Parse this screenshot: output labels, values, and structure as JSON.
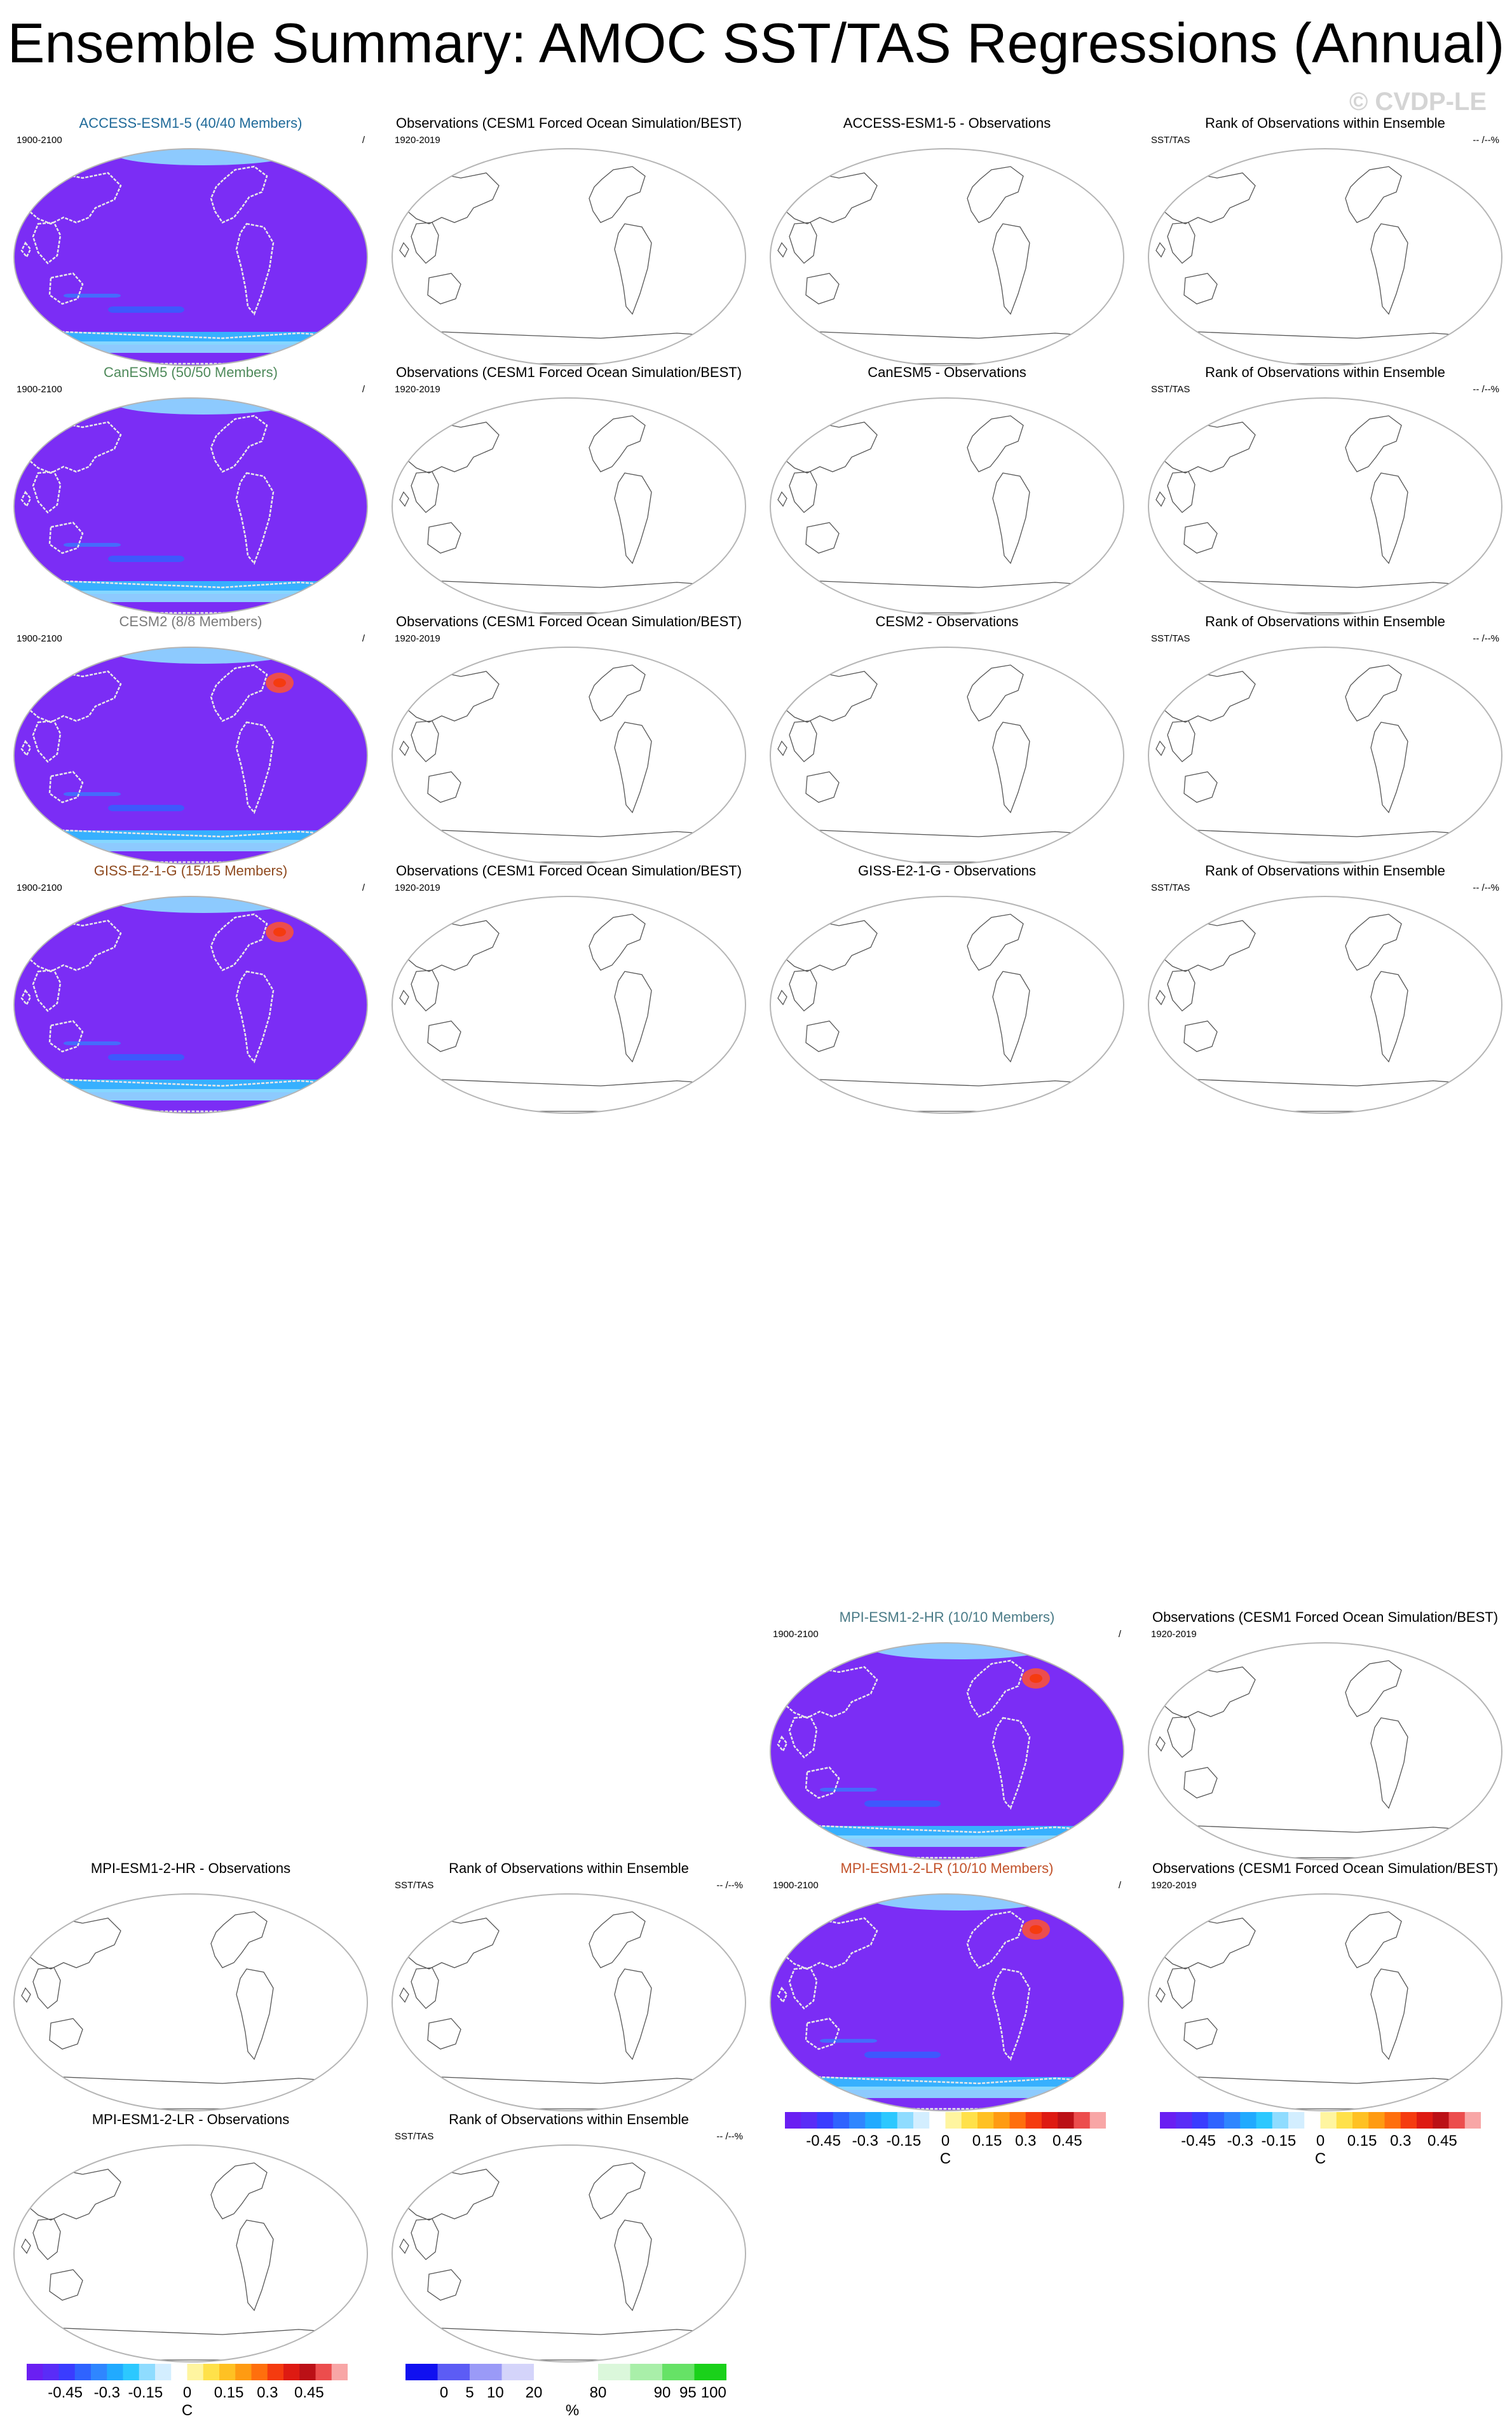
{
  "title": "Ensemble Summary: AMOC SST/TAS Regressions (Annual)",
  "watermark": "© CVDP-LE",
  "colors": {
    "ocean_base": "#7b2df5",
    "land_fill": "#ffffff",
    "coast": "#555555",
    "label_access": "#1f6a99",
    "label_canesm": "#4f8a5b",
    "label_cesm": "#7a7a7a",
    "label_giss": "#8f4a1f",
    "label_mpihr": "#4a7b87",
    "label_mpilr": "#c2522a"
  },
  "panels": [
    {
      "title": "ACCESS-ESM1-5 (40/40 Members)",
      "left": "1900-2100",
      "right": "/",
      "kind": "model",
      "color": "label_access"
    },
    {
      "title": "Observations (CESM1 Forced Ocean Simulation/BEST)",
      "left": "1920-2019",
      "right": "",
      "kind": "blank"
    },
    {
      "title": "ACCESS-ESM1-5 - Observations",
      "left": "",
      "right": "",
      "kind": "blank"
    },
    {
      "title": "Rank of Observations within Ensemble",
      "left": "SST/TAS",
      "right": "-- /--%",
      "kind": "blank"
    },
    {
      "title": "CanESM5 (50/50 Members)",
      "left": "1900-2100",
      "right": "/",
      "kind": "model",
      "color": "label_canesm"
    },
    {
      "title": "Observations (CESM1 Forced Ocean Simulation/BEST)",
      "left": "1920-2019",
      "right": "",
      "kind": "blank"
    },
    {
      "title": "CanESM5 - Observations",
      "left": "",
      "right": "",
      "kind": "blank"
    },
    {
      "title": "Rank of Observations within Ensemble",
      "left": "SST/TAS",
      "right": "-- /--%",
      "kind": "blank"
    },
    {
      "title": "CESM2 (8/8 Members)",
      "left": "1900-2100",
      "right": "/",
      "kind": "model",
      "color": "label_cesm"
    },
    {
      "title": "Observations (CESM1 Forced Ocean Simulation/BEST)",
      "left": "1920-2019",
      "right": "",
      "kind": "blank"
    },
    {
      "title": "CESM2 - Observations",
      "left": "",
      "right": "",
      "kind": "blank"
    },
    {
      "title": "Rank of Observations within Ensemble",
      "left": "SST/TAS",
      "right": "-- /--%",
      "kind": "blank"
    },
    {
      "title": "GISS-E2-1-G (15/15 Members)",
      "left": "1900-2100",
      "right": "/",
      "kind": "model",
      "color": "label_giss"
    },
    {
      "title": "Observations (CESM1 Forced Ocean Simulation/BEST)",
      "left": "1920-2019",
      "right": "",
      "kind": "blank"
    },
    {
      "title": "GISS-E2-1-G - Observations",
      "left": "",
      "right": "",
      "kind": "blank"
    },
    {
      "title": "Rank of Observations within Ensemble",
      "left": "SST/TAS",
      "right": "-- /--%",
      "kind": "blank"
    },
    {
      "title": "MPI-ESM1-2-HR (10/10 Members)",
      "left": "1900-2100",
      "right": "/",
      "kind": "model",
      "color": "label_mpihr"
    },
    {
      "title": "Observations (CESM1 Forced Ocean Simulation/BEST)",
      "left": "1920-2019",
      "right": "",
      "kind": "blank"
    },
    {
      "title": "MPI-ESM1-2-HR - Observations",
      "left": "",
      "right": "",
      "kind": "blank"
    },
    {
      "title": "Rank of Observations within Ensemble",
      "left": "SST/TAS",
      "right": "-- /--%",
      "kind": "blank"
    },
    {
      "title": "MPI-ESM1-2-LR (10/10 Members)",
      "left": "1900-2100",
      "right": "/",
      "kind": "model",
      "color": "label_mpilr"
    },
    {
      "title": "Observations (CESM1 Forced Ocean Simulation/BEST)",
      "left": "1920-2019",
      "right": "",
      "kind": "blank"
    },
    {
      "title": "MPI-ESM1-2-LR - Observations",
      "left": "",
      "right": "",
      "kind": "blank"
    },
    {
      "title": "Rank of Observations within Ensemble",
      "left": "SST/TAS",
      "right": "-- /--%",
      "kind": "blank"
    }
  ],
  "chart_data": {
    "type": "heatmap",
    "colorbars": [
      {
        "id": "regression-a",
        "unit": "C",
        "tick_labels": [
          "-0.45",
          "-0.3",
          "-0.15",
          "0",
          "0.15",
          "0.3",
          "0.45"
        ],
        "colors": [
          "#6a1ff2",
          "#5a2cf7",
          "#3a3cff",
          "#2f63ff",
          "#2f86ff",
          "#21aaff",
          "#2cc8ff",
          "#8fdcff",
          "#d3eeff",
          "#ffffff",
          "#fff5a0",
          "#ffe14a",
          "#ffc123",
          "#ff9b12",
          "#ff6f0d",
          "#f53b0f",
          "#de1a12",
          "#bb1016",
          "#ec4d4d",
          "#f8a6a6"
        ]
      },
      {
        "id": "regression-b",
        "unit": "C",
        "tick_labels": [
          "-0.45",
          "-0.3",
          "-0.15",
          "0",
          "0.15",
          "0.3",
          "0.45"
        ],
        "colors": [
          "#6a1ff2",
          "#5a2cf7",
          "#3a3cff",
          "#2f63ff",
          "#2f86ff",
          "#21aaff",
          "#2cc8ff",
          "#8fdcff",
          "#d3eeff",
          "#ffffff",
          "#fff5a0",
          "#ffe14a",
          "#ffc123",
          "#ff9b12",
          "#ff6f0d",
          "#f53b0f",
          "#de1a12",
          "#bb1016",
          "#ec4d4d",
          "#f8a6a6"
        ]
      },
      {
        "id": "regression-c",
        "unit": "C",
        "tick_labels": [
          "-0.45",
          "-0.3",
          "-0.15",
          "0",
          "0.15",
          "0.3",
          "0.45"
        ],
        "colors": [
          "#6a1ff2",
          "#5a2cf7",
          "#3a3cff",
          "#2f63ff",
          "#2f86ff",
          "#21aaff",
          "#2cc8ff",
          "#8fdcff",
          "#d3eeff",
          "#ffffff",
          "#fff5a0",
          "#ffe14a",
          "#ffc123",
          "#ff9b12",
          "#ff6f0d",
          "#f53b0f",
          "#de1a12",
          "#bb1016",
          "#ec4d4d",
          "#f8a6a6"
        ]
      },
      {
        "id": "rank",
        "unit": "%",
        "tick_labels": [
          "0",
          "5",
          "10",
          "20",
          "80",
          "90",
          "95",
          "100"
        ],
        "colors": [
          "#1010f0",
          "#5c5cf5",
          "#9a9af7",
          "#d4d4fa",
          "#ffffff",
          "#ffffff",
          "#dbf7db",
          "#a9efa9",
          "#66e266",
          "#1ad11a"
        ]
      }
    ]
  }
}
